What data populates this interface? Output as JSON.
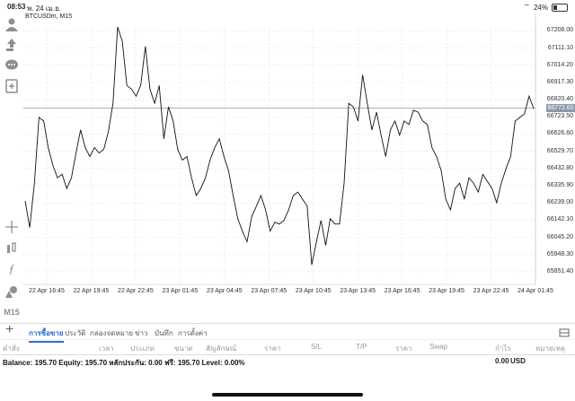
{
  "status": {
    "time": "08:53",
    "date": "พ. 24 เม.ย.",
    "battery": "24%"
  },
  "chart": {
    "title": "BTCUSDm, M15",
    "current_price": "66772.60",
    "price_labels": [
      "67208.00",
      "67111.10",
      "67014.20",
      "66917.30",
      "66820.40",
      "66723.50",
      "66626.60",
      "66529.70",
      "66432.80",
      "66335.90",
      "66239.00",
      "66142.10",
      "66045.20",
      "65948.30",
      "65851.40"
    ],
    "time_labels": [
      "22 Apr 16:45",
      "22 Apr 19:45",
      "22 Apr 22:45",
      "23 Apr 01:45",
      "23 Apr 04:45",
      "23 Apr 07:45",
      "23 Apr 10:45",
      "23 Apr 13:45",
      "23 Apr 16:45",
      "23 Apr 19:45",
      "23 Apr 22:45",
      "24 Apr 01:45"
    ]
  },
  "chart_data": {
    "type": "line",
    "symbol": "BTCUSDm",
    "timeframe": "M15",
    "ylim": [
      65780,
      67240
    ],
    "values": [
      66250,
      66100,
      66350,
      66720,
      66700,
      66550,
      66450,
      66380,
      66400,
      66320,
      66380,
      66520,
      66650,
      66550,
      66500,
      66550,
      66520,
      66540,
      66640,
      66800,
      67230,
      67150,
      66900,
      66880,
      66840,
      66900,
      67120,
      66880,
      66800,
      66900,
      66600,
      66780,
      66700,
      66540,
      66480,
      66500,
      66380,
      66280,
      66320,
      66380,
      66480,
      66550,
      66600,
      66500,
      66420,
      66280,
      66150,
      66080,
      66020,
      66160,
      66220,
      66280,
      66200,
      66080,
      66130,
      66120,
      66140,
      66200,
      66280,
      66300,
      66260,
      66220,
      65890,
      66020,
      66140,
      66000,
      66150,
      66120,
      66120,
      66350,
      66800,
      66780,
      66700,
      66960,
      66800,
      66650,
      66750,
      66620,
      66500,
      66650,
      66700,
      66620,
      66700,
      66680,
      66760,
      66750,
      66700,
      66680,
      66550,
      66500,
      66420,
      66260,
      66200,
      66320,
      66350,
      66260,
      66380,
      66350,
      66300,
      66400,
      66360,
      66320,
      66240,
      66350,
      66430,
      66500,
      66700,
      66720,
      66740,
      66840,
      66770
    ],
    "time_labels": [
      "22 Apr 16:45",
      "22 Apr 19:45",
      "22 Apr 22:45",
      "23 Apr 01:45",
      "23 Apr 04:45",
      "23 Apr 07:45",
      "23 Apr 10:45",
      "23 Apr 13:45",
      "23 Apr 16:45",
      "23 Apr 19:45",
      "23 Apr 22:45",
      "24 Apr 01:45"
    ]
  },
  "toolbar": {
    "tools": [
      "person-icon",
      "upload-icon",
      "chat-icon",
      "document-icon",
      "crosshair-icon",
      "indicators-icon",
      "function-icon",
      "shapes-icon"
    ],
    "timeframe": "M15"
  },
  "tabs": [
    "การซื้อขาย",
    "ประวัติ",
    "กล่องจดหมาย",
    "ข่าว",
    "บันทึก",
    "การตั้งค่า"
  ],
  "table_headers": [
    "คำสั่ง",
    "เวลา",
    "ประเภท",
    "ขนาด",
    "สัญลักษณ์",
    "ราคา",
    "S/L",
    "T/P",
    "ราคา",
    "Swap",
    "กำไร",
    "หมายเหตุ"
  ],
  "balance": {
    "text": "Balance: 195.70 Equity: 195.70 หลักประกัน: 0.00 ฟรี: 195.70 Level: 0.00%",
    "amount": "0.00",
    "currency": "USD"
  },
  "colors": {
    "accent": "#2b6bd6",
    "line": "#111111",
    "price_marker": "#8a9aaa"
  }
}
